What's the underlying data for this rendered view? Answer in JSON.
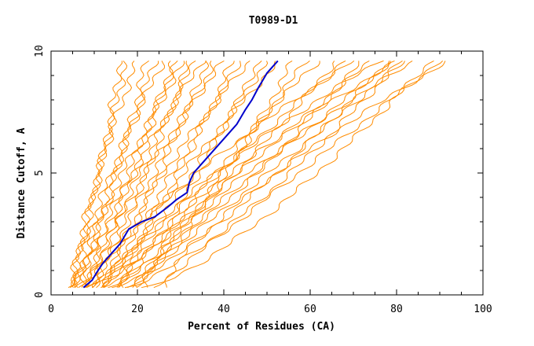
{
  "chart_data": {
    "type": "line",
    "title": "T0989-D1",
    "xlabel": "Percent of Residues (CA)",
    "ylabel": "Distance Cutoff, A",
    "xlim": [
      0,
      100
    ],
    "ylim": [
      0,
      10
    ],
    "x_ticks": [
      "0",
      "20",
      "40",
      "60",
      "80",
      "100"
    ],
    "y_ticks": [
      "0",
      "5",
      "10"
    ],
    "grid": false,
    "colors": {
      "highlight": "#0000cc",
      "others": "#ff8c00"
    },
    "highlight_series": {
      "x": [
        7.5,
        9.5,
        10.5,
        12,
        14,
        16,
        17,
        18,
        21,
        24,
        27,
        29,
        31.5,
        32,
        33,
        35,
        37,
        39,
        41,
        43,
        45,
        46.5,
        48,
        49,
        50,
        51.5,
        52.5
      ],
      "y": [
        0.3,
        0.6,
        0.9,
        1.3,
        1.7,
        2.1,
        2.4,
        2.7,
        3.0,
        3.2,
        3.6,
        3.9,
        4.2,
        4.6,
        5.0,
        5.4,
        5.8,
        6.2,
        6.6,
        7.0,
        7.6,
        8.0,
        8.5,
        8.8,
        9.1,
        9.4,
        9.6
      ]
    },
    "other_series_endpoints": [
      {
        "x0": 4.0,
        "x9": 16
      },
      {
        "x0": 4.5,
        "x9": 17.5
      },
      {
        "x0": 5.0,
        "x9": 20
      },
      {
        "x0": 5.0,
        "x9": 22
      },
      {
        "x0": 5.5,
        "x9": 24
      },
      {
        "x0": 6.0,
        "x9": 26
      },
      {
        "x0": 6.0,
        "x9": 28
      },
      {
        "x0": 6.5,
        "x9": 29
      },
      {
        "x0": 7.0,
        "x9": 31
      },
      {
        "x0": 7.5,
        "x9": 32
      },
      {
        "x0": 8.0,
        "x9": 33
      },
      {
        "x0": 8.5,
        "x9": 35
      },
      {
        "x0": 9.0,
        "x9": 36
      },
      {
        "x0": 9.5,
        "x9": 38
      },
      {
        "x0": 10.0,
        "x9": 40
      },
      {
        "x0": 11.0,
        "x9": 42
      },
      {
        "x0": 12.0,
        "x9": 44
      },
      {
        "x0": 13.0,
        "x9": 46
      },
      {
        "x0": 14.0,
        "x9": 48
      },
      {
        "x0": 15.0,
        "x9": 50
      },
      {
        "x0": 16.0,
        "x9": 53
      },
      {
        "x0": 18.0,
        "x9": 56
      },
      {
        "x0": 20.0,
        "x9": 59
      },
      {
        "x0": 22.0,
        "x9": 62
      },
      {
        "x0": 8.0,
        "x9": 66
      },
      {
        "x0": 9.0,
        "x9": 68
      },
      {
        "x0": 10.0,
        "x9": 70
      },
      {
        "x0": 11.0,
        "x9": 72
      },
      {
        "x0": 12.0,
        "x9": 74
      },
      {
        "x0": 13.0,
        "x9": 76
      },
      {
        "x0": 14.0,
        "x9": 78
      },
      {
        "x0": 15.0,
        "x9": 79
      },
      {
        "x0": 16.0,
        "x9": 80
      },
      {
        "x0": 17.0,
        "x9": 81
      },
      {
        "x0": 18.0,
        "x9": 82
      },
      {
        "x0": 20.0,
        "x9": 84
      },
      {
        "x0": 22.0,
        "x9": 88
      },
      {
        "x0": 24.0,
        "x9": 90
      },
      {
        "x0": 26.0,
        "x9": 92
      }
    ]
  }
}
